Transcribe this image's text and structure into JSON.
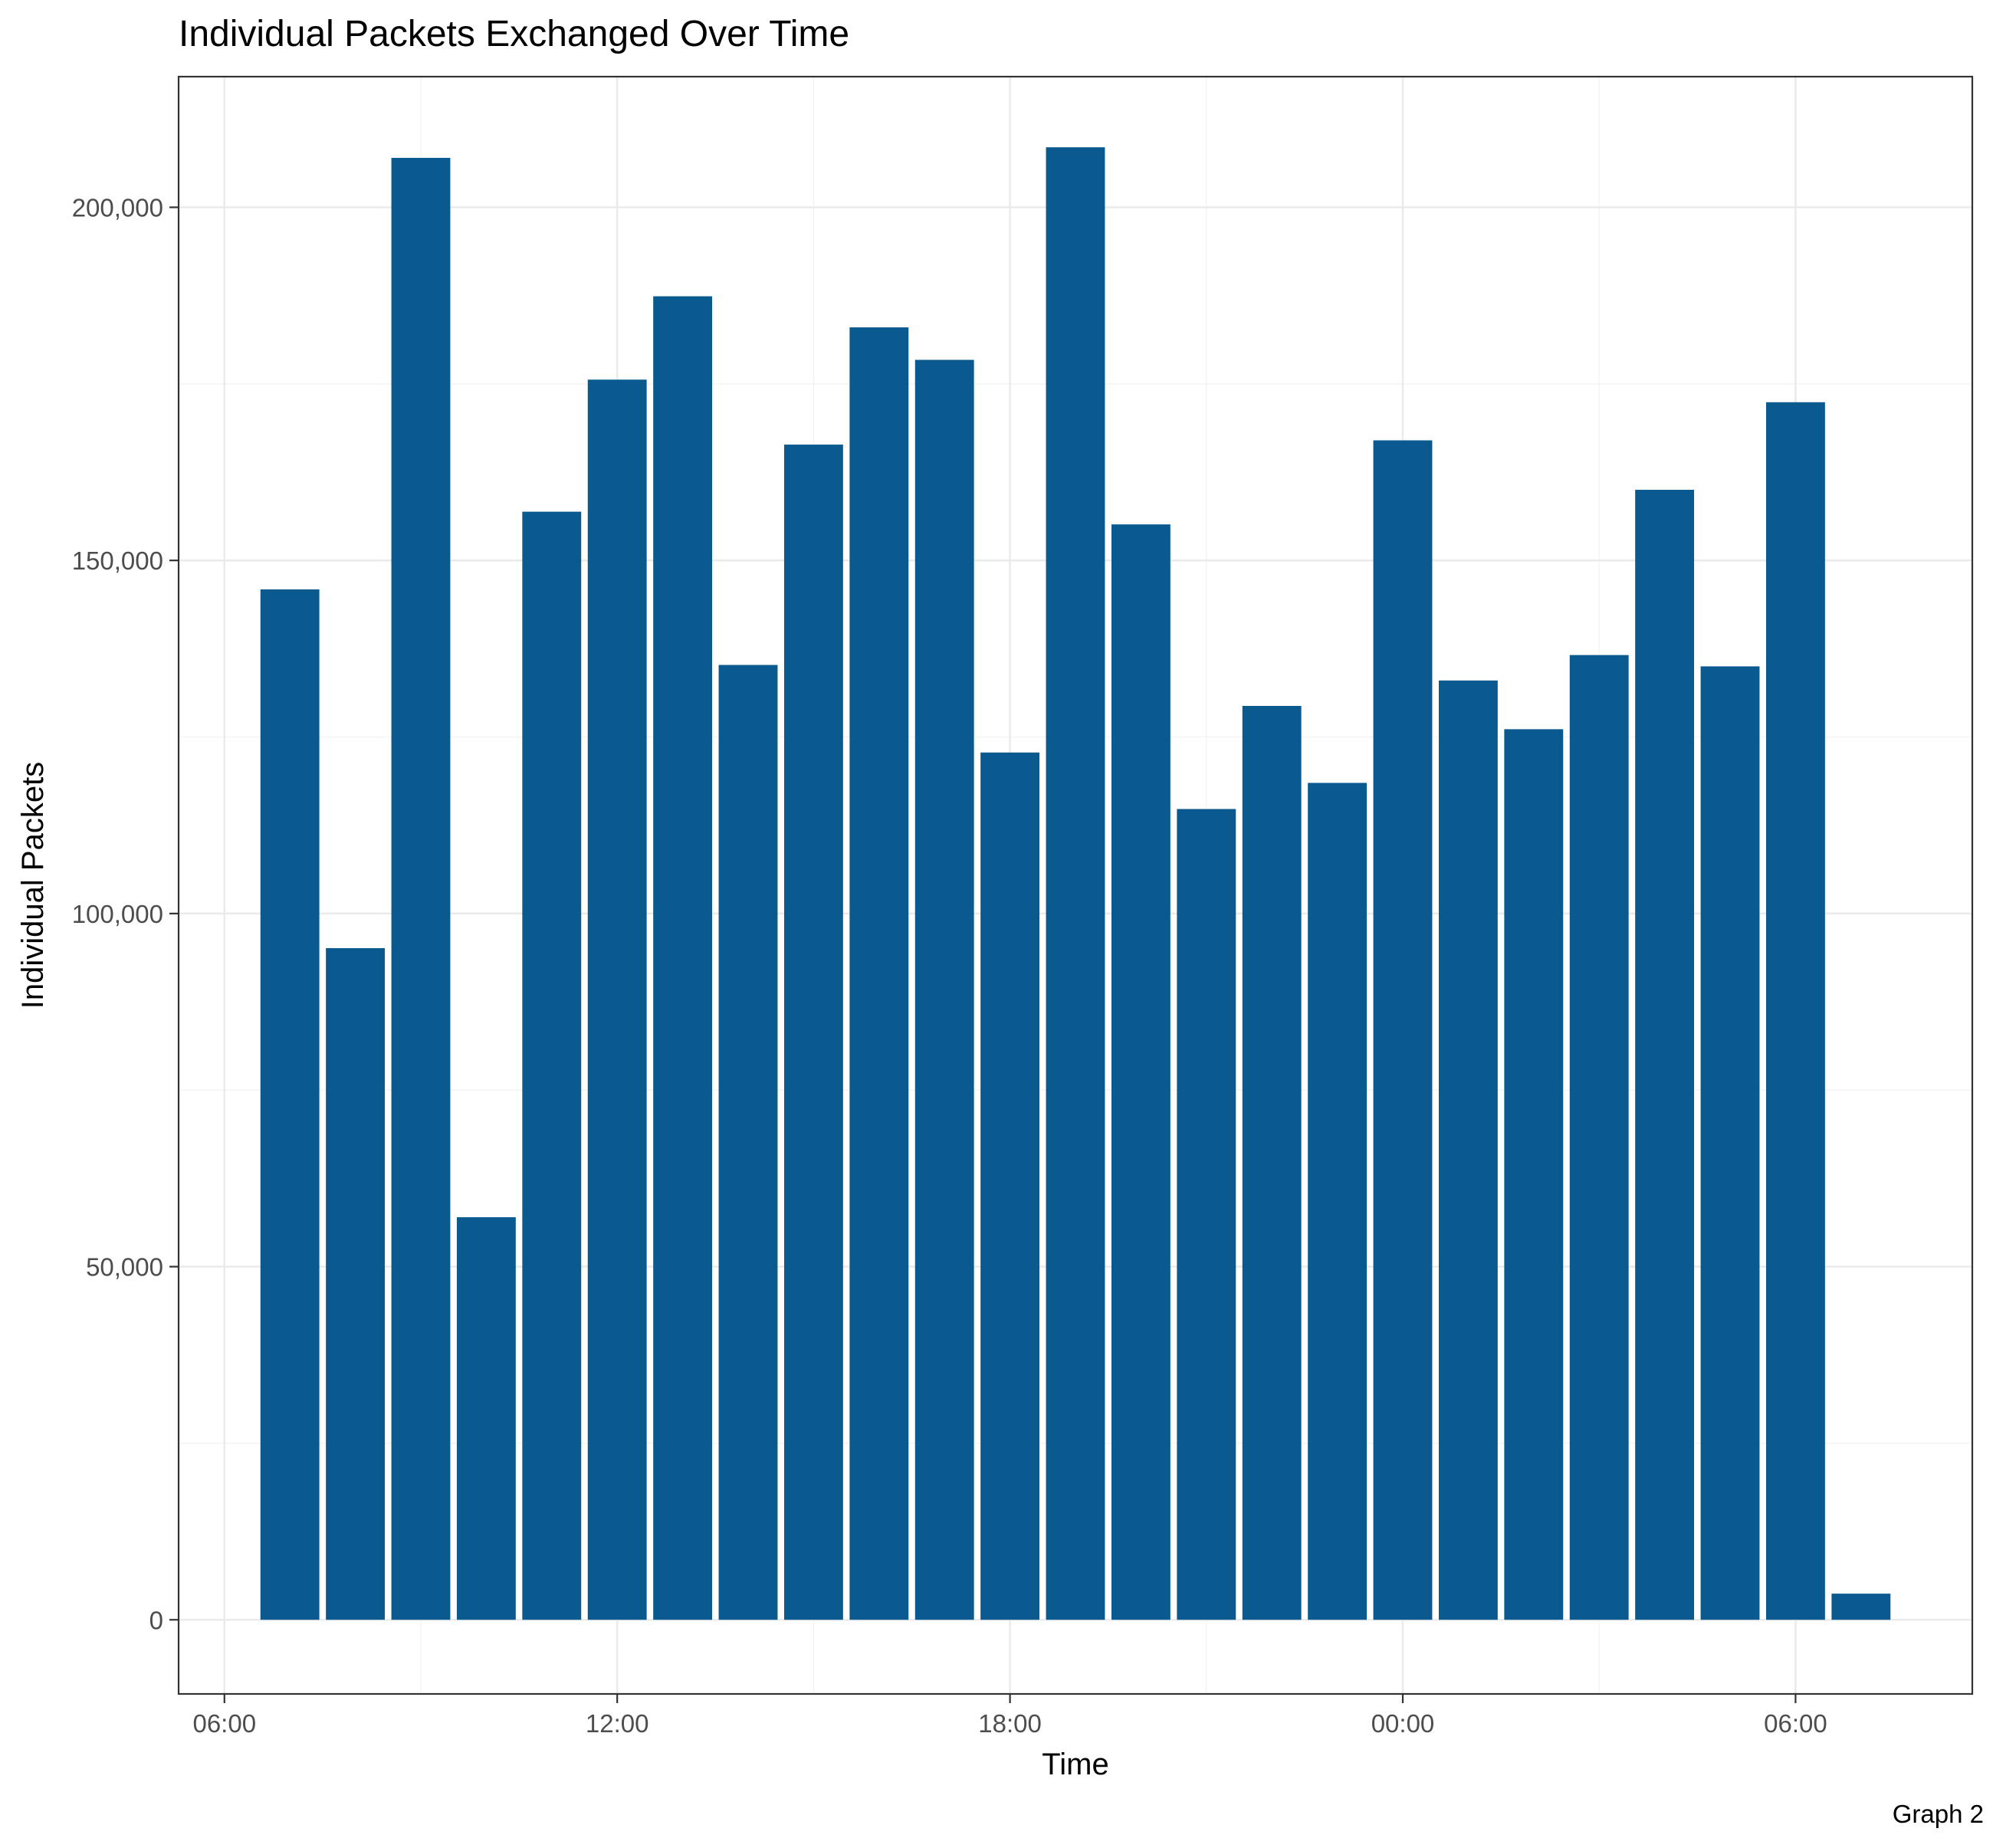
{
  "chart_data": {
    "type": "bar",
    "title": "Individual Packets Exchanged Over Time",
    "xlabel": "Time",
    "ylabel": "Individual Packets",
    "caption": "Graph 2",
    "bar_color": "#0a5a8f",
    "grid": true,
    "legend": "none",
    "x_ticks": [
      {
        "hour": 6,
        "label": "06:00"
      },
      {
        "hour": 12,
        "label": "12:00"
      },
      {
        "hour": 18,
        "label": "18:00"
      },
      {
        "hour": 24,
        "label": "00:00"
      },
      {
        "hour": 30,
        "label": "06:00"
      }
    ],
    "y_ticks": [
      {
        "value": 0,
        "label": "0"
      },
      {
        "value": 50000,
        "label": "50,000"
      },
      {
        "value": 100000,
        "label": "100,000"
      },
      {
        "value": 150000,
        "label": "150,000"
      },
      {
        "value": 200000,
        "label": "200,000"
      }
    ],
    "xlim": [
      5.3,
      32.7
    ],
    "ylim": [
      -10500,
      218500
    ],
    "series": [
      {
        "x": [
          "07:00",
          "08:00",
          "09:00",
          "10:00",
          "11:00",
          "12:00",
          "13:00",
          "14:00",
          "15:00",
          "16:00",
          "17:00",
          "18:00",
          "19:00",
          "20:00",
          "21:00",
          "22:00",
          "23:00",
          "00:00",
          "01:00",
          "02:00",
          "03:00",
          "04:00",
          "05:00",
          "06:00",
          "07:00"
        ],
        "hours": [
          7,
          8,
          9,
          10,
          11,
          12,
          13,
          14,
          15,
          16,
          17,
          18,
          19,
          20,
          21,
          22,
          23,
          24,
          25,
          26,
          27,
          28,
          29,
          30,
          31
        ],
        "values": [
          145900,
          95100,
          207000,
          57000,
          156900,
          175600,
          187400,
          135200,
          166400,
          183000,
          178400,
          122800,
          208500,
          155100,
          114800,
          129400,
          118500,
          167000,
          133000,
          126100,
          136600,
          160000,
          135000,
          172400,
          3700
        ]
      }
    ]
  }
}
